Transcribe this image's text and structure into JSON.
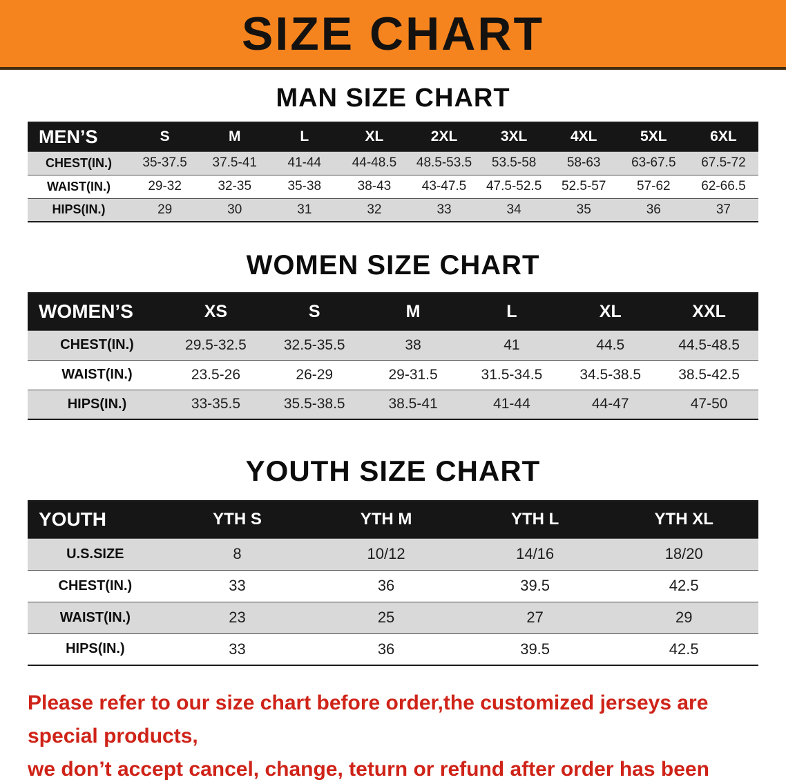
{
  "banner": {
    "title": "SIZE CHART"
  },
  "sections": [
    {
      "title": "MAN SIZE CHART",
      "header": {
        "label": "MEN’S",
        "columns": [
          "S",
          "M",
          "L",
          "XL",
          "2XL",
          "3XL",
          "4XL",
          "5XL",
          "6XL"
        ]
      },
      "rows": [
        {
          "label": "CHEST(IN.)",
          "values": [
            "35-37.5",
            "37.5-41",
            "41-44",
            "44-48.5",
            "48.5-53.5",
            "53.5-58",
            "58-63",
            "63-67.5",
            "67.5-72"
          ]
        },
        {
          "label": "WAIST(IN.)",
          "values": [
            "29-32",
            "32-35",
            "35-38",
            "38-43",
            "43-47.5",
            "47.5-52.5",
            "52.5-57",
            "57-62",
            "62-66.5"
          ]
        },
        {
          "label": "HIPS(IN.)",
          "values": [
            "29",
            "30",
            "31",
            "32",
            "33",
            "34",
            "35",
            "36",
            "37"
          ]
        }
      ]
    },
    {
      "title": "WOMEN SIZE CHART",
      "header": {
        "label": "WOMEN’S",
        "columns": [
          "XS",
          "S",
          "M",
          "L",
          "XL",
          "XXL"
        ]
      },
      "rows": [
        {
          "label": "CHEST(IN.)",
          "values": [
            "29.5-32.5",
            "32.5-35.5",
            "38",
            "41",
            "44.5",
            "44.5-48.5"
          ]
        },
        {
          "label": "WAIST(IN.)",
          "values": [
            "23.5-26",
            "26-29",
            "29-31.5",
            "31.5-34.5",
            "34.5-38.5",
            "38.5-42.5"
          ]
        },
        {
          "label": "HIPS(IN.)",
          "values": [
            "33-35.5",
            "35.5-38.5",
            "38.5-41",
            "41-44",
            "44-47",
            "47-50"
          ]
        }
      ]
    },
    {
      "title": "YOUTH SIZE CHART",
      "header": {
        "label": "YOUTH",
        "columns": [
          "YTH S",
          "YTH M",
          "YTH L",
          "YTH XL"
        ]
      },
      "rows": [
        {
          "label": "U.S.SIZE",
          "values": [
            "8",
            "10/12",
            "14/16",
            "18/20"
          ]
        },
        {
          "label": "CHEST(IN.)",
          "values": [
            "33",
            "36",
            "39.5",
            "42.5"
          ]
        },
        {
          "label": "WAIST(IN.)",
          "values": [
            "23",
            "25",
            "27",
            "29"
          ]
        },
        {
          "label": "HIPS(IN.)",
          "values": [
            "33",
            "36",
            "39.5",
            "42.5"
          ]
        }
      ]
    }
  ],
  "footer": {
    "lines": [
      "Please refer to our size chart before order,the customized jerseys are special products,",
      "we don’t accept cancel, change, teturn or refund after order has been placed!"
    ]
  },
  "colors": {
    "banner_bg": "#f6841e",
    "table_header_bg": "#161616",
    "row_stripe": "#d9d9d9",
    "footer_text": "#cf2318"
  }
}
